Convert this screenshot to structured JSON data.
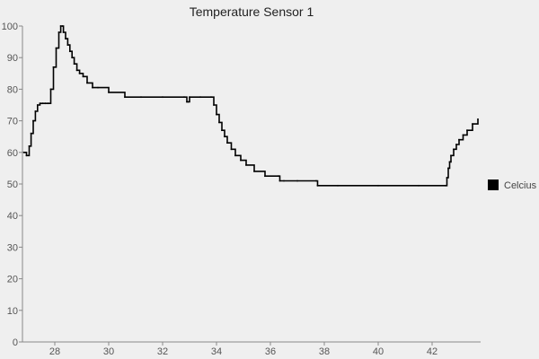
{
  "chart_data": {
    "type": "line",
    "title": "Temperature Sensor 1",
    "xlabel": "",
    "ylabel": "",
    "xlim": [
      26.8,
      43.8
    ],
    "ylim": [
      0,
      100
    ],
    "x_ticks": [
      28,
      30,
      32,
      34,
      36,
      38,
      40,
      42
    ],
    "y_ticks": [
      0,
      10,
      20,
      30,
      40,
      50,
      60,
      70,
      80,
      90,
      100
    ],
    "grid": false,
    "legend_position": "right",
    "series": [
      {
        "name": "Celcius",
        "color": "#000000",
        "x": [
          26.85,
          26.95,
          27.05,
          27.12,
          27.2,
          27.28,
          27.36,
          27.45,
          27.55,
          27.65,
          27.75,
          27.85,
          27.95,
          28.05,
          28.15,
          28.22,
          28.28,
          28.32,
          28.4,
          28.48,
          28.56,
          28.64,
          28.72,
          28.82,
          28.92,
          29.05,
          29.2,
          29.4,
          29.6,
          30.0,
          30.6,
          31.2,
          32.0,
          32.8,
          32.9,
          32.95,
          33.0,
          33.4,
          33.8,
          33.9,
          34.0,
          34.1,
          34.2,
          34.3,
          34.4,
          34.55,
          34.7,
          34.9,
          35.1,
          35.4,
          35.8,
          36.3,
          36.35,
          36.5,
          37.0,
          37.7,
          37.75,
          38.5,
          40.0,
          41.5,
          42.5,
          42.55,
          42.6,
          42.65,
          42.7,
          42.8,
          42.9,
          43.0,
          43.15,
          43.3,
          43.5,
          43.7
        ],
        "values": [
          60,
          59,
          62,
          66,
          70,
          73,
          75,
          75.5,
          75.5,
          75.5,
          75.5,
          80,
          87,
          93,
          98,
          100,
          100,
          98,
          96,
          94,
          92,
          90,
          88,
          86,
          85,
          84,
          82,
          80.5,
          80.5,
          79,
          77.5,
          77.5,
          77.5,
          77.5,
          76,
          76,
          77.5,
          77.5,
          77.5,
          75,
          72,
          69.5,
          67,
          65,
          63,
          61,
          59,
          57.5,
          56,
          54,
          52.5,
          52.5,
          51,
          51,
          51,
          51,
          49.5,
          49.5,
          49.5,
          49.5,
          49.5,
          52,
          55,
          57,
          59,
          61,
          62.5,
          64,
          65.5,
          67,
          69,
          70.5
        ]
      }
    ]
  }
}
